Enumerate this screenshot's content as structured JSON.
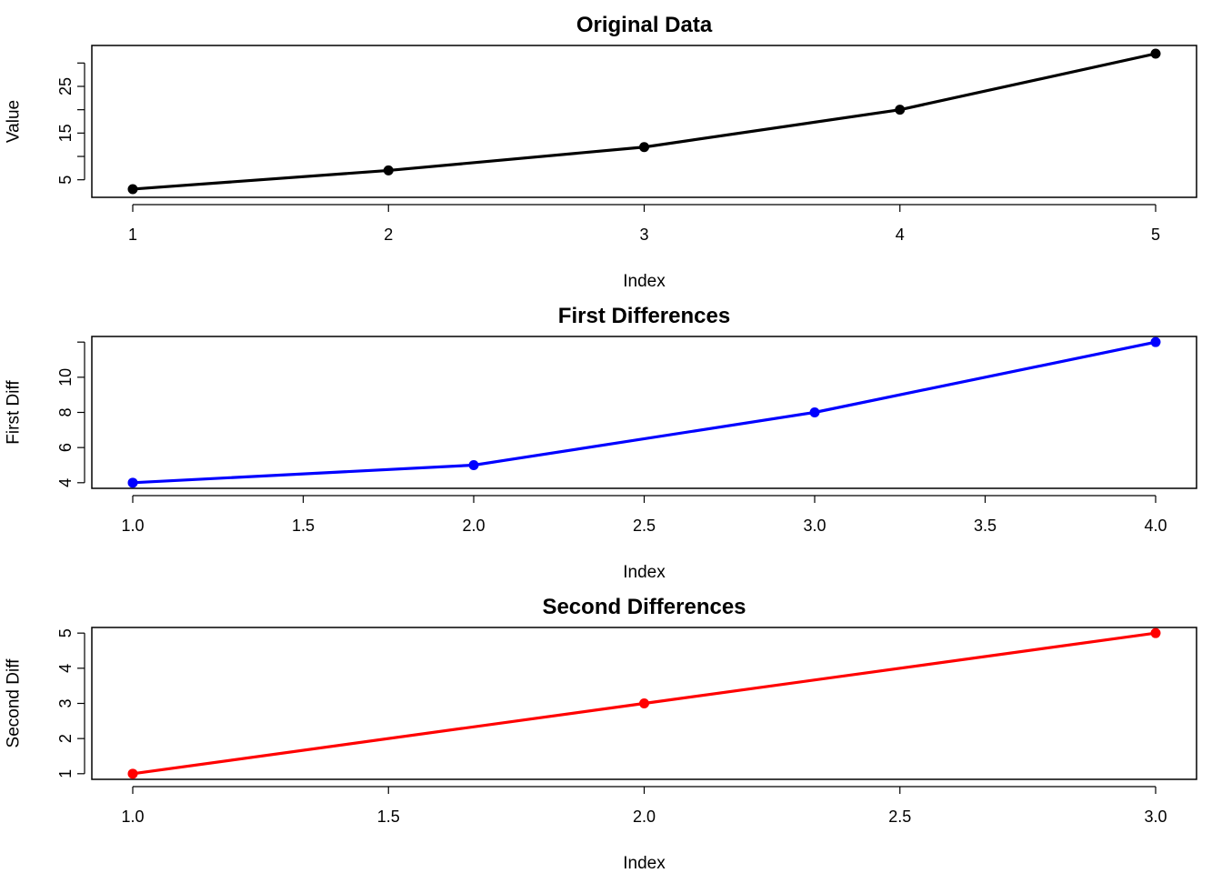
{
  "chart_data": [
    {
      "type": "line",
      "title": "Original Data",
      "xlabel": "Index",
      "ylabel": "Value",
      "x": [
        1,
        2,
        3,
        4,
        5
      ],
      "values": [
        3,
        7,
        12,
        20,
        32
      ],
      "xlim": [
        0.84,
        5.16
      ],
      "ylim": [
        1.24,
        33.76
      ],
      "xticks": [
        1,
        2,
        3,
        4,
        5
      ],
      "xtick_labels": [
        "1",
        "2",
        "3",
        "4",
        "5"
      ],
      "yticks": [
        5,
        10,
        15,
        20,
        25,
        30
      ],
      "ytick_labels": [
        "5",
        "",
        "15",
        "",
        "25",
        ""
      ],
      "color": "#000000",
      "grid": false,
      "legend": false
    },
    {
      "type": "line",
      "title": "First Differences",
      "xlabel": "Index",
      "ylabel": "First Diff",
      "x": [
        1,
        2,
        3,
        4
      ],
      "values": [
        4,
        5,
        8,
        12
      ],
      "xlim": [
        0.88,
        4.12
      ],
      "ylim": [
        3.68,
        12.32
      ],
      "xticks": [
        1.0,
        1.5,
        2.0,
        2.5,
        3.0,
        3.5,
        4.0
      ],
      "xtick_labels": [
        "1.0",
        "1.5",
        "2.0",
        "2.5",
        "3.0",
        "3.5",
        "4.0"
      ],
      "yticks": [
        4,
        6,
        8,
        10,
        12
      ],
      "ytick_labels": [
        "4",
        "6",
        "8",
        "10",
        ""
      ],
      "color": "#0000ff",
      "grid": false,
      "legend": false
    },
    {
      "type": "line",
      "title": "Second Differences",
      "xlabel": "Index",
      "ylabel": "Second Diff",
      "x": [
        1,
        2,
        3
      ],
      "values": [
        1,
        3,
        5
      ],
      "xlim": [
        0.92,
        3.08
      ],
      "ylim": [
        0.84,
        5.16
      ],
      "xticks": [
        1.0,
        1.5,
        2.0,
        2.5,
        3.0
      ],
      "xtick_labels": [
        "1.0",
        "1.5",
        "2.0",
        "2.5",
        "3.0"
      ],
      "yticks": [
        1,
        2,
        3,
        4,
        5
      ],
      "ytick_labels": [
        "1",
        "2",
        "3",
        "4",
        "5"
      ],
      "color": "#ff0000",
      "grid": false,
      "legend": false
    }
  ]
}
